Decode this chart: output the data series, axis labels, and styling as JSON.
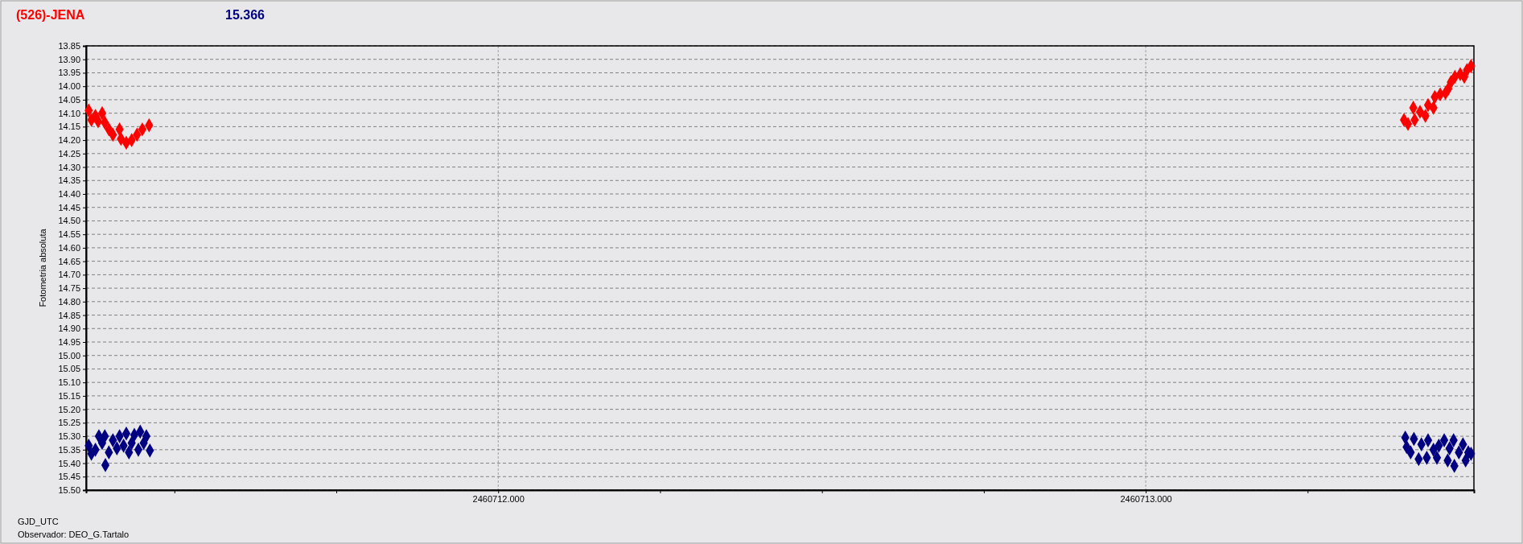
{
  "chart_data": {
    "type": "scatter",
    "title": "(526)-JENA",
    "subtitle": "15.366",
    "xlabel": "GJD_UTC",
    "ylabel": "Fotometria absoluta",
    "annotations": [
      "Observador: DEO_G.Tartalo"
    ],
    "xlim": [
      2460711.3636,
      2460713.5068
    ],
    "xticks": [
      {
        "value": 2460711.5,
        "label": null
      },
      {
        "value": 2460711.75,
        "label": null
      },
      {
        "value": 2460712,
        "label": "2460712.000"
      },
      {
        "value": 2460712.25,
        "label": null
      },
      {
        "value": 2460712.5,
        "label": null
      },
      {
        "value": 2460712.75,
        "label": null
      },
      {
        "value": 2460713,
        "label": "2460713.000"
      },
      {
        "value": 2460713.25,
        "label": null
      }
    ],
    "ylim": [
      15.5,
      13.85
    ],
    "yticks": [
      {
        "value": 13.85,
        "label": "13.85"
      },
      {
        "value": 13.9,
        "label": "13.90"
      },
      {
        "value": 13.95,
        "label": "13.95"
      },
      {
        "value": 14.0,
        "label": "14.00"
      },
      {
        "value": 14.05,
        "label": "14.05"
      },
      {
        "value": 14.1,
        "label": "14.10"
      },
      {
        "value": 14.15,
        "label": "14.15"
      },
      {
        "value": 14.2,
        "label": "14.20"
      },
      {
        "value": 14.25,
        "label": "14.25"
      },
      {
        "value": 14.3,
        "label": "14.30"
      },
      {
        "value": 14.35,
        "label": "14.35"
      },
      {
        "value": 14.4,
        "label": "14.40"
      },
      {
        "value": 14.45,
        "label": "14.45"
      },
      {
        "value": 14.5,
        "label": "14.50"
      },
      {
        "value": 14.55,
        "label": "14.55"
      },
      {
        "value": 14.6,
        "label": "14.60"
      },
      {
        "value": 14.65,
        "label": "14.65"
      },
      {
        "value": 14.7,
        "label": "14.70"
      },
      {
        "value": 14.75,
        "label": "14.75"
      },
      {
        "value": 14.8,
        "label": "14.80"
      },
      {
        "value": 14.85,
        "label": "14.85"
      },
      {
        "value": 14.9,
        "label": "14.90"
      },
      {
        "value": 14.95,
        "label": "14.95"
      },
      {
        "value": 15.0,
        "label": "15.00"
      },
      {
        "value": 15.05,
        "label": "15.05"
      },
      {
        "value": 15.1,
        "label": "15.10"
      },
      {
        "value": 15.15,
        "label": "15.15"
      },
      {
        "value": 15.2,
        "label": "15.20"
      },
      {
        "value": 15.25,
        "label": "15.25"
      },
      {
        "value": 15.3,
        "label": "15.30"
      },
      {
        "value": 15.35,
        "label": "15.35"
      },
      {
        "value": 15.4,
        "label": "15.40"
      },
      {
        "value": 15.45,
        "label": "15.45"
      },
      {
        "value": 15.5,
        "label": "15.50"
      }
    ],
    "grid": true,
    "marker": "diamond",
    "series": [
      {
        "color": "#ff0000",
        "x": [
          2460711.3677,
          2460711.3718,
          2460711.378,
          2460711.3822,
          2460711.3884,
          2460711.3925,
          2460711.3988,
          2460711.405,
          2460711.4153,
          2460711.4174,
          2460711.4257,
          2460711.434,
          2460711.4422,
          2460711.4505,
          2460711.4609,
          2460713.3988,
          2460713.405,
          2460713.4132,
          2460713.4153,
          2460713.4236,
          2460713.4319,
          2460713.436,
          2460713.4443,
          2460713.4464,
          2460713.4547,
          2460713.4629,
          2460713.4671,
          2460713.4712,
          2460713.4774,
          2460713.4857,
          2460713.4919,
          2460713.4961,
          2460713.5023
        ],
        "values": [
          14.09,
          14.125,
          14.11,
          14.13,
          14.1,
          14.135,
          14.16,
          14.18,
          14.16,
          14.195,
          14.21,
          14.2,
          14.18,
          14.16,
          14.145,
          14.125,
          14.14,
          14.08,
          14.125,
          14.095,
          14.11,
          14.07,
          14.08,
          14.04,
          14.03,
          14.025,
          14.01,
          13.985,
          13.965,
          13.955,
          13.965,
          13.94,
          13.925
        ]
      },
      {
        "color": "#000080",
        "x": [
          2460711.3677,
          2460711.3718,
          2460711.378,
          2460711.3834,
          2460711.3884,
          2460711.3925,
          2460711.3934,
          2460711.3988,
          2460711.405,
          2460711.4112,
          2460711.4153,
          2460711.4215,
          2460711.4257,
          2460711.4298,
          2460711.434,
          2460711.4381,
          2460711.4443,
          2460711.4472,
          2460711.4526,
          2460711.4567,
          2460711.4621,
          2460713.4008,
          2460713.4029,
          2460713.4091,
          2460713.4141,
          2460713.4215,
          2460713.4257,
          2460713.434,
          2460713.436,
          2460713.4443,
          2460713.4497,
          2460713.4526,
          2460713.4609,
          2460713.4663,
          2460713.4692,
          2460713.4754,
          2460713.4766,
          2460713.4836,
          2460713.4899,
          2460713.494,
          2460713.4981,
          2460713.5023
        ],
        "values": [
          15.335,
          15.365,
          15.35,
          15.3,
          15.325,
          15.3,
          15.407,
          15.36,
          15.315,
          15.345,
          15.3,
          15.335,
          15.29,
          15.36,
          15.325,
          15.295,
          15.35,
          15.283,
          15.325,
          15.3,
          15.353,
          15.305,
          15.34,
          15.36,
          15.31,
          15.385,
          15.33,
          15.38,
          15.315,
          15.35,
          15.38,
          15.335,
          15.315,
          15.39,
          15.345,
          15.315,
          15.41,
          15.36,
          15.33,
          15.39,
          15.36,
          15.365
        ]
      }
    ]
  }
}
